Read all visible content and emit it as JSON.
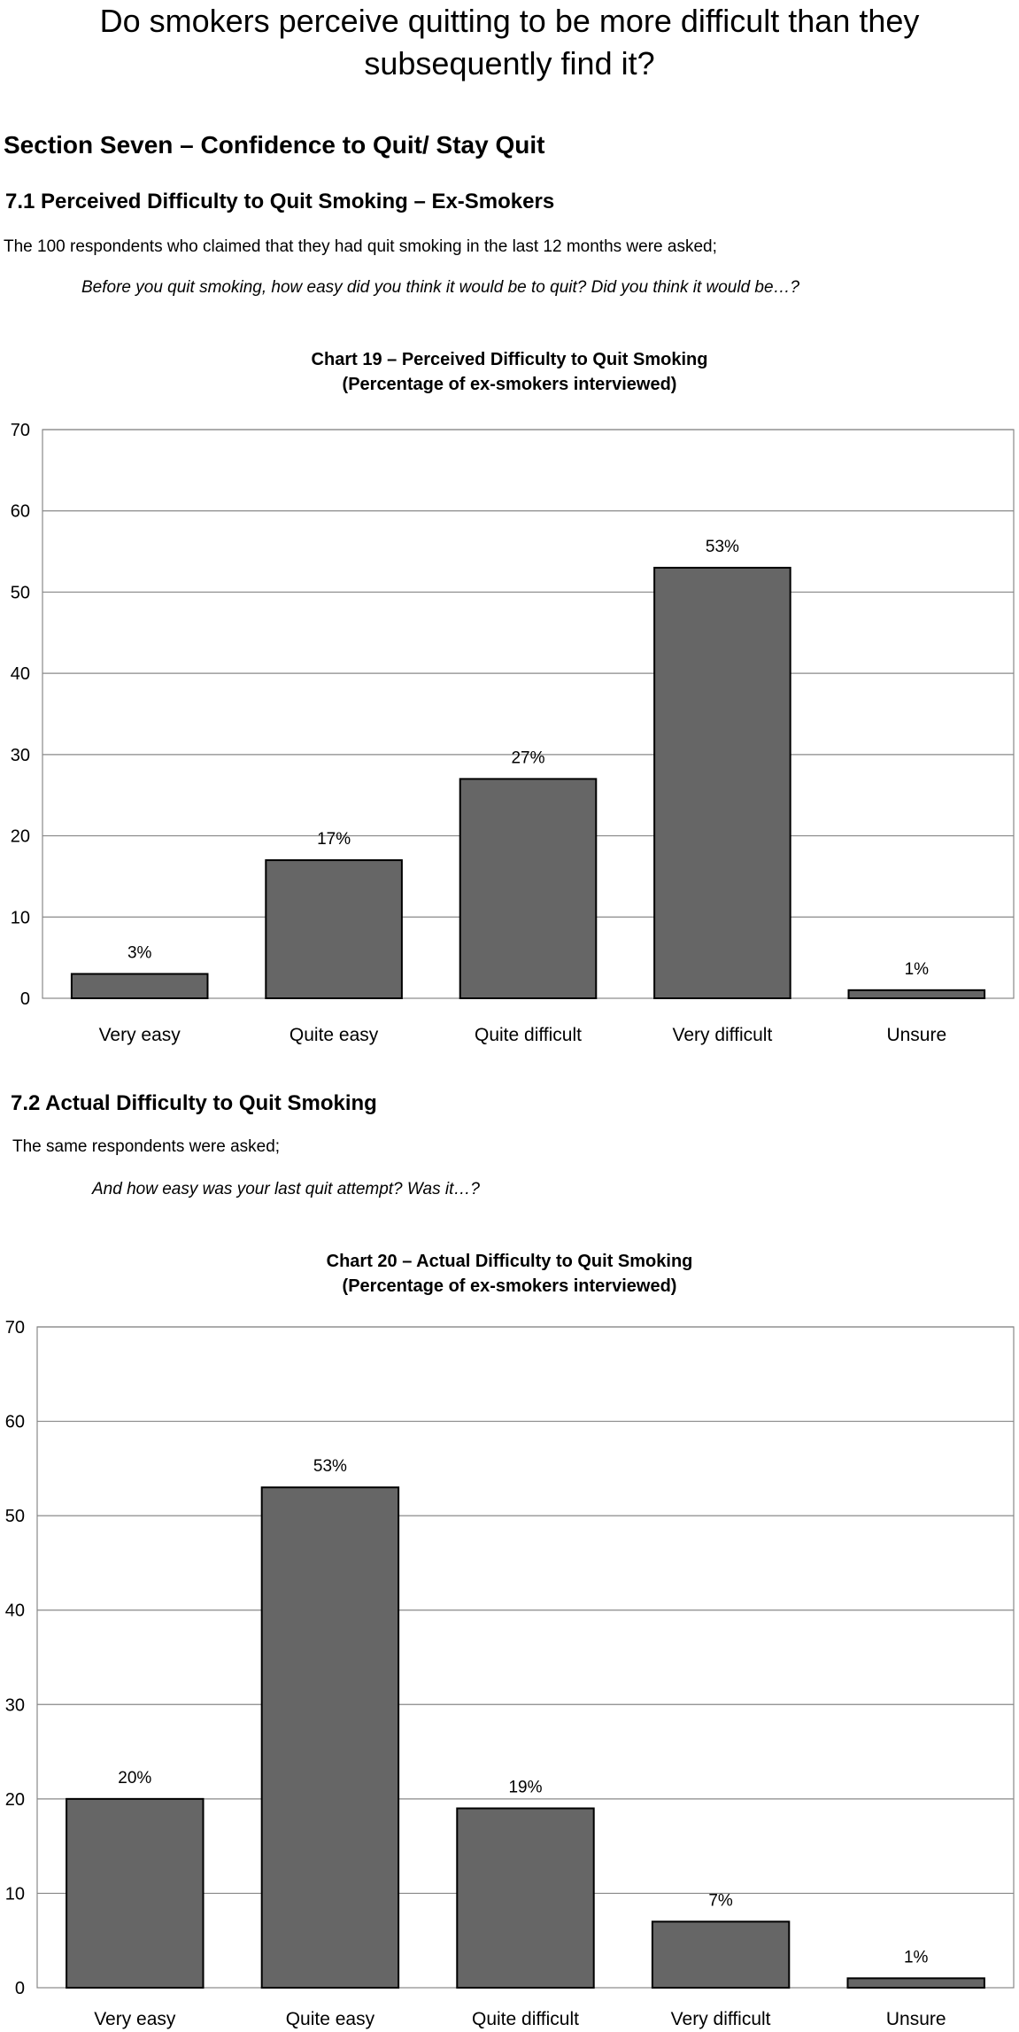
{
  "page_title_line1": "Do smokers perceive quitting to be more difficult than they",
  "page_title_line2": "subsequently find it?",
  "section_title": "Section Seven – Confidence to Quit/ Stay Quit",
  "s1": {
    "heading": "7.1 Perceived Difficulty to Quit Smoking – Ex-Smokers",
    "intro": "The 100 respondents who claimed that they had quit smoking in the last 12 months were asked;",
    "question": "Before you quit smoking, how easy did you think it would be to quit? Did you think it would be…?"
  },
  "s2": {
    "heading": "7.2 Actual Difficulty to Quit Smoking",
    "intro": "The same respondents were asked;",
    "question": "And how easy was your last quit attempt? Was it…?"
  },
  "colors": {
    "bar": "#666666",
    "bar_stroke": "#000000",
    "grid": "#888888"
  },
  "chart_data": [
    {
      "type": "bar",
      "title": "Chart 19 – Perceived Difficulty to Quit Smoking",
      "subtitle": "(Percentage of ex-smokers interviewed)",
      "categories": [
        "Very easy",
        "Quite easy",
        "Quite difficult",
        "Very difficult",
        "Unsure"
      ],
      "values": [
        3,
        17,
        27,
        53,
        1
      ],
      "data_labels": [
        "3%",
        "17%",
        "27%",
        "53%",
        "1%"
      ],
      "ylim": [
        0,
        70
      ],
      "yticks": [
        0,
        10,
        20,
        30,
        40,
        50,
        60,
        70
      ],
      "grid": true,
      "legend": "none"
    },
    {
      "type": "bar",
      "title": "Chart 20 – Actual Difficulty to Quit Smoking",
      "subtitle": "(Percentage of ex-smokers interviewed)",
      "categories": [
        "Very easy",
        "Quite easy",
        "Quite difficult",
        "Very difficult",
        "Unsure"
      ],
      "values": [
        20,
        53,
        19,
        7,
        1
      ],
      "data_labels": [
        "20%",
        "53%",
        "19%",
        "7%",
        "1%"
      ],
      "ylim": [
        0,
        70
      ],
      "yticks": [
        0,
        10,
        20,
        30,
        40,
        50,
        60,
        70
      ],
      "grid": true,
      "legend": "none"
    }
  ]
}
